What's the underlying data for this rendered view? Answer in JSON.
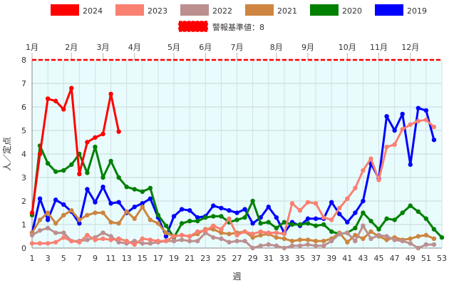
{
  "chart_data": {
    "type": "line",
    "xlabel": "週",
    "ylabel": "人／定点",
    "xlim": [
      1,
      53
    ],
    "ylim": [
      0,
      8
    ],
    "x_ticks": [
      1,
      3,
      5,
      7,
      9,
      11,
      13,
      15,
      17,
      19,
      21,
      23,
      25,
      27,
      29,
      31,
      33,
      35,
      37,
      39,
      41,
      43,
      45,
      47,
      49,
      51,
      53
    ],
    "y_ticks": [
      0,
      1,
      2,
      3,
      4,
      5,
      6,
      7,
      8
    ],
    "grid": true,
    "legend_position": "top",
    "months": [
      {
        "label": "1月",
        "week": 1
      },
      {
        "label": "2月",
        "week": 6
      },
      {
        "label": "3月",
        "week": 10
      },
      {
        "label": "4月",
        "week": 14
      },
      {
        "label": "5月",
        "week": 19
      },
      {
        "label": "6月",
        "week": 23
      },
      {
        "label": "7月",
        "week": 27
      },
      {
        "label": "8月",
        "week": 32
      },
      {
        "label": "9月",
        "week": 36
      },
      {
        "label": "10月",
        "week": 41
      },
      {
        "label": "11月",
        "week": 45
      },
      {
        "label": "12月",
        "week": 49
      }
    ],
    "threshold": {
      "label": "警報基準値：8",
      "value": 8,
      "color": "#ff0000"
    },
    "series": [
      {
        "name": "2024",
        "color": "#ff0000",
        "points": [
          [
            1,
            1.5
          ],
          [
            2,
            4
          ],
          [
            3,
            6.35
          ],
          [
            4,
            6.25
          ],
          [
            5,
            5.9
          ],
          [
            6,
            6.8
          ],
          [
            7,
            3.15
          ],
          [
            8,
            4.5
          ],
          [
            9,
            4.7
          ],
          [
            10,
            4.85
          ],
          [
            11,
            6.55
          ],
          [
            12,
            4.95
          ]
        ]
      },
      {
        "name": "2023",
        "color": "#fa8072",
        "points": [
          [
            1,
            0.2
          ],
          [
            2,
            0.2
          ],
          [
            3,
            0.2
          ],
          [
            4,
            0.25
          ],
          [
            5,
            0.45
          ],
          [
            6,
            0.3
          ],
          [
            7,
            0.25
          ],
          [
            8,
            0.55
          ],
          [
            9,
            0.35
          ],
          [
            10,
            0.4
          ],
          [
            11,
            0.35
          ],
          [
            12,
            0.4
          ],
          [
            13,
            0.3
          ],
          [
            14,
            0.15
          ],
          [
            15,
            0.4
          ],
          [
            16,
            0.35
          ],
          [
            17,
            0.3
          ],
          [
            18,
            0.3
          ],
          [
            19,
            0.5
          ],
          [
            20,
            0.55
          ],
          [
            21,
            0.5
          ],
          [
            22,
            0.7
          ],
          [
            23,
            0.75
          ],
          [
            24,
            0.95
          ],
          [
            25,
            0.8
          ],
          [
            26,
            1.25
          ],
          [
            27,
            0.55
          ],
          [
            28,
            0.7
          ],
          [
            29,
            0.6
          ],
          [
            30,
            0.7
          ],
          [
            31,
            0.65
          ],
          [
            32,
            0.65
          ],
          [
            33,
            0.6
          ],
          [
            34,
            1.9
          ],
          [
            35,
            1.6
          ],
          [
            36,
            1.95
          ],
          [
            37,
            1.9
          ],
          [
            38,
            1.3
          ],
          [
            39,
            1.2
          ],
          [
            40,
            1.7
          ],
          [
            41,
            2.1
          ],
          [
            42,
            2.55
          ],
          [
            43,
            3.3
          ],
          [
            44,
            3.8
          ],
          [
            45,
            2.9
          ],
          [
            46,
            4.3
          ],
          [
            47,
            4.4
          ],
          [
            48,
            5.05
          ],
          [
            49,
            5.25
          ],
          [
            50,
            5.4
          ],
          [
            51,
            5.45
          ],
          [
            52,
            5.15
          ]
        ]
      },
      {
        "name": "2022",
        "color": "#bc8f8f",
        "points": [
          [
            1,
            0.55
          ],
          [
            2,
            0.75
          ],
          [
            3,
            0.85
          ],
          [
            4,
            0.65
          ],
          [
            5,
            0.65
          ],
          [
            6,
            0.3
          ],
          [
            7,
            0.3
          ],
          [
            8,
            0.35
          ],
          [
            9,
            0.45
          ],
          [
            10,
            0.65
          ],
          [
            11,
            0.5
          ],
          [
            12,
            0.25
          ],
          [
            13,
            0.2
          ],
          [
            14,
            0.3
          ],
          [
            15,
            0.2
          ],
          [
            16,
            0.2
          ],
          [
            17,
            0.25
          ],
          [
            18,
            0.3
          ],
          [
            19,
            0.3
          ],
          [
            20,
            0.35
          ],
          [
            21,
            0.3
          ],
          [
            22,
            0.3
          ],
          [
            23,
            0.65
          ],
          [
            24,
            0.45
          ],
          [
            25,
            0.4
          ],
          [
            26,
            0.25
          ],
          [
            27,
            0.3
          ],
          [
            28,
            0.3
          ],
          [
            29,
            0.0
          ],
          [
            30,
            0.1
          ],
          [
            31,
            0.15
          ],
          [
            32,
            0.1
          ],
          [
            33,
            0.0
          ],
          [
            34,
            0.1
          ],
          [
            35,
            0.1
          ],
          [
            36,
            0.15
          ],
          [
            37,
            0.1
          ],
          [
            38,
            0.1
          ],
          [
            39,
            0.3
          ],
          [
            40,
            0.6
          ],
          [
            41,
            0.65
          ],
          [
            42,
            0.3
          ],
          [
            43,
            0.95
          ],
          [
            44,
            0.4
          ],
          [
            45,
            0.55
          ],
          [
            46,
            0.5
          ],
          [
            47,
            0.35
          ],
          [
            48,
            0.3
          ],
          [
            49,
            0.2
          ],
          [
            50,
            0.0
          ],
          [
            51,
            0.15
          ],
          [
            52,
            0.15
          ]
        ]
      },
      {
        "name": "2021",
        "color": "#cd853f",
        "points": [
          [
            1,
            0.65
          ],
          [
            2,
            1.2
          ],
          [
            3,
            1.5
          ],
          [
            4,
            1.05
          ],
          [
            5,
            1.4
          ],
          [
            6,
            1.6
          ],
          [
            7,
            1.2
          ],
          [
            8,
            1.4
          ],
          [
            9,
            1.5
          ],
          [
            10,
            1.5
          ],
          [
            11,
            1.1
          ],
          [
            12,
            1.05
          ],
          [
            13,
            1.55
          ],
          [
            14,
            1.25
          ],
          [
            15,
            1.75
          ],
          [
            16,
            1.2
          ],
          [
            17,
            1.05
          ],
          [
            18,
            0.65
          ],
          [
            19,
            0.5
          ],
          [
            20,
            0.55
          ],
          [
            21,
            0.5
          ],
          [
            22,
            0.6
          ],
          [
            23,
            0.8
          ],
          [
            24,
            0.8
          ],
          [
            25,
            0.65
          ],
          [
            26,
            0.6
          ],
          [
            27,
            0.65
          ],
          [
            28,
            0.7
          ],
          [
            29,
            0.45
          ],
          [
            30,
            0.55
          ],
          [
            31,
            0.6
          ],
          [
            32,
            0.45
          ],
          [
            33,
            0.4
          ],
          [
            34,
            0.3
          ],
          [
            35,
            0.35
          ],
          [
            36,
            0.35
          ],
          [
            37,
            0.3
          ],
          [
            38,
            0.3
          ],
          [
            39,
            0.4
          ],
          [
            40,
            0.65
          ],
          [
            41,
            0.25
          ],
          [
            42,
            0.55
          ],
          [
            43,
            0.4
          ],
          [
            44,
            0.7
          ],
          [
            45,
            0.5
          ],
          [
            46,
            0.35
          ],
          [
            47,
            0.45
          ],
          [
            48,
            0.35
          ],
          [
            49,
            0.4
          ],
          [
            50,
            0.5
          ],
          [
            51,
            0.55
          ],
          [
            52,
            0.4
          ]
        ]
      },
      {
        "name": "2020",
        "color": "#008000",
        "points": [
          [
            1,
            1.4
          ],
          [
            2,
            4.35
          ],
          [
            3,
            3.6
          ],
          [
            4,
            3.25
          ],
          [
            5,
            3.3
          ],
          [
            6,
            3.55
          ],
          [
            7,
            4.0
          ],
          [
            8,
            3.2
          ],
          [
            9,
            4.3
          ],
          [
            10,
            3.0
          ],
          [
            11,
            3.7
          ],
          [
            12,
            3.0
          ],
          [
            13,
            2.6
          ],
          [
            14,
            2.5
          ],
          [
            15,
            2.4
          ],
          [
            16,
            2.55
          ],
          [
            17,
            1.4
          ],
          [
            18,
            0.95
          ],
          [
            19,
            0.45
          ],
          [
            20,
            1.05
          ],
          [
            21,
            1.15
          ],
          [
            22,
            1.15
          ],
          [
            23,
            1.3
          ],
          [
            24,
            1.35
          ],
          [
            25,
            1.35
          ],
          [
            26,
            1.1
          ],
          [
            27,
            1.2
          ],
          [
            28,
            1.3
          ],
          [
            29,
            2.0
          ],
          [
            30,
            1.05
          ],
          [
            31,
            1.1
          ],
          [
            32,
            0.85
          ],
          [
            33,
            1.1
          ],
          [
            34,
            1.0
          ],
          [
            35,
            1.0
          ],
          [
            36,
            1.05
          ],
          [
            37,
            0.95
          ],
          [
            38,
            1.0
          ],
          [
            39,
            0.7
          ],
          [
            40,
            0.6
          ],
          [
            41,
            0.65
          ],
          [
            42,
            0.85
          ],
          [
            43,
            1.5
          ],
          [
            44,
            1.15
          ],
          [
            45,
            0.8
          ],
          [
            46,
            1.25
          ],
          [
            47,
            1.2
          ],
          [
            48,
            1.5
          ],
          [
            49,
            1.8
          ],
          [
            50,
            1.55
          ],
          [
            51,
            1.25
          ],
          [
            52,
            0.8
          ],
          [
            53,
            0.45
          ]
        ]
      },
      {
        "name": "2019",
        "color": "#0000ff",
        "points": [
          [
            1,
            0.65
          ],
          [
            2,
            2.1
          ],
          [
            3,
            1.2
          ],
          [
            4,
            2.05
          ],
          [
            5,
            1.85
          ],
          [
            6,
            1.55
          ],
          [
            7,
            1.05
          ],
          [
            8,
            2.5
          ],
          [
            9,
            1.95
          ],
          [
            10,
            2.6
          ],
          [
            11,
            1.9
          ],
          [
            12,
            1.95
          ],
          [
            13,
            1.5
          ],
          [
            14,
            1.75
          ],
          [
            15,
            1.9
          ],
          [
            16,
            2.1
          ],
          [
            17,
            1.3
          ],
          [
            18,
            0.5
          ],
          [
            19,
            1.35
          ],
          [
            20,
            1.65
          ],
          [
            21,
            1.6
          ],
          [
            22,
            1.3
          ],
          [
            23,
            1.35
          ],
          [
            24,
            1.8
          ],
          [
            25,
            1.7
          ],
          [
            26,
            1.6
          ],
          [
            27,
            1.5
          ],
          [
            28,
            1.65
          ],
          [
            29,
            1.05
          ],
          [
            30,
            1.3
          ],
          [
            31,
            1.75
          ],
          [
            32,
            1.3
          ],
          [
            33,
            0.65
          ],
          [
            34,
            1.1
          ],
          [
            35,
            0.95
          ],
          [
            36,
            1.25
          ],
          [
            37,
            1.25
          ],
          [
            38,
            1.25
          ],
          [
            39,
            1.95
          ],
          [
            40,
            1.45
          ],
          [
            41,
            1.1
          ],
          [
            42,
            1.5
          ],
          [
            43,
            2.0
          ],
          [
            44,
            3.6
          ],
          [
            45,
            2.95
          ],
          [
            46,
            5.6
          ],
          [
            47,
            5.0
          ],
          [
            48,
            5.7
          ],
          [
            49,
            3.55
          ],
          [
            50,
            5.95
          ],
          [
            51,
            5.85
          ],
          [
            52,
            4.6
          ]
        ]
      }
    ]
  }
}
